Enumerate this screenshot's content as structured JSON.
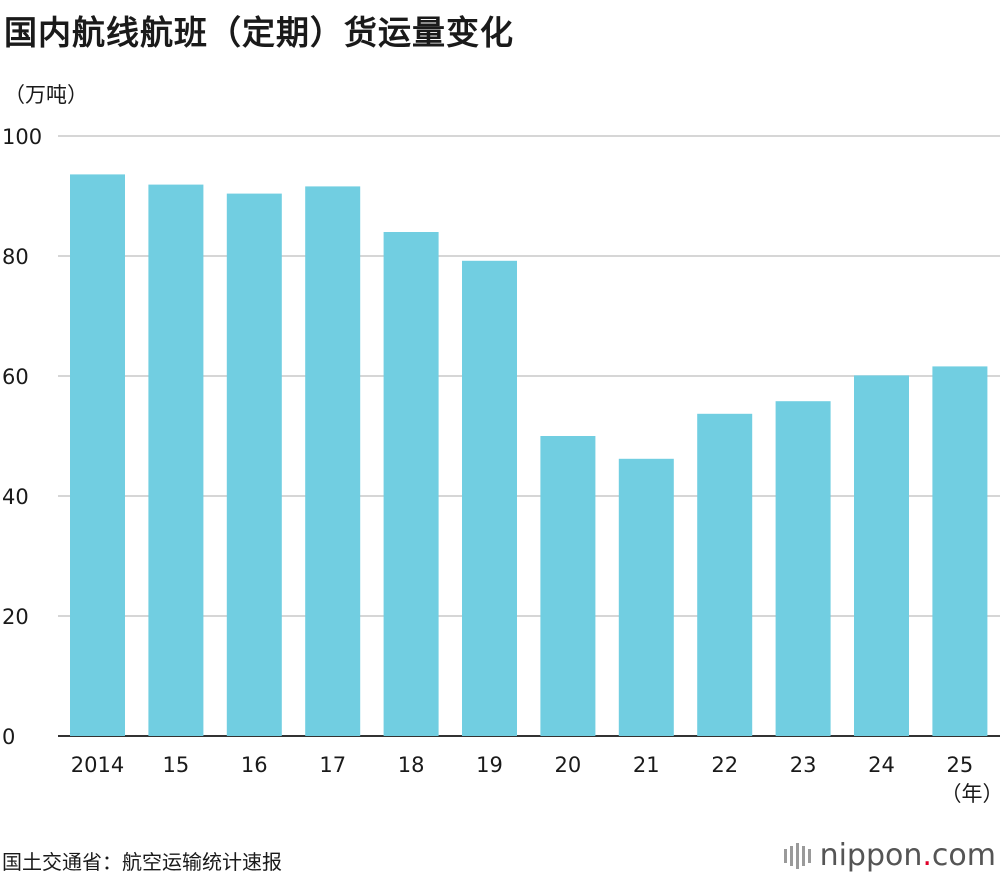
{
  "title": "国内航线航班（定期）货运量变化",
  "source": "国土交通省：航空运输统计速报",
  "logo": {
    "name": "nippon",
    "dot": ".",
    "tld": "com"
  },
  "colors": {
    "bar": "#71CEE1",
    "grid": "#c8c8c8",
    "axis": "#333333",
    "logo_dot": "#e0002a"
  },
  "chart_data": {
    "type": "bar",
    "title": "国内航线航班（定期）货运量变化",
    "ylabel": "（万吨）",
    "xlabel": "（年）",
    "categories": [
      "2014",
      "15",
      "16",
      "17",
      "18",
      "19",
      "20",
      "21",
      "22",
      "23",
      "24",
      "25"
    ],
    "values": [
      93.6,
      91.9,
      90.4,
      91.6,
      84.0,
      79.2,
      50.0,
      46.2,
      53.7,
      55.8,
      60.1,
      61.6
    ],
    "ylim": [
      0,
      100
    ],
    "yticks": [
      0,
      20,
      40,
      60,
      80,
      100
    ],
    "grid": true,
    "legend": "none"
  }
}
